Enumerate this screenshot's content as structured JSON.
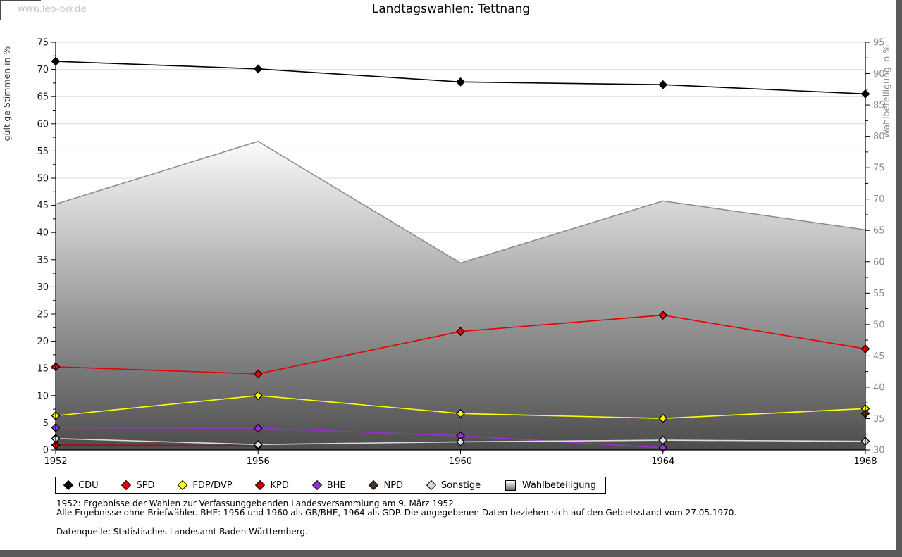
{
  "page": {
    "watermark": "www.leo-bw.de",
    "title": "Landtagswahlen: Tettnang"
  },
  "chart_data": {
    "type": "line",
    "title": "Landtagswahlen: Tettnang",
    "x": [
      1952,
      1956,
      1960,
      1964,
      1968
    ],
    "left_axis": {
      "label": "gültige Stimmen in %",
      "min": 0,
      "max": 75,
      "tick_step": 5,
      "minor_step": 2.5
    },
    "right_axis": {
      "label": "Wahlbeteiligung in %",
      "min": 30,
      "max": 95,
      "tick_step": 5,
      "minor_step": 2.5
    },
    "grid": true,
    "legend_position": "bottom",
    "series": [
      {
        "name": "CDU",
        "axis": "left",
        "color": "#000000",
        "values": [
          71.5,
          70.1,
          67.7,
          67.2,
          65.5
        ]
      },
      {
        "name": "SPD",
        "axis": "left",
        "color": "#e60000",
        "values": [
          15.3,
          14.0,
          21.8,
          24.8,
          18.6
        ]
      },
      {
        "name": "FDP/DVP",
        "axis": "left",
        "color": "#ffff00",
        "values": [
          6.3,
          10.0,
          6.7,
          5.8,
          7.6
        ]
      },
      {
        "name": "KPD",
        "axis": "left",
        "color": "#bf0000",
        "values": [
          0.9,
          0.8,
          null,
          null,
          null
        ]
      },
      {
        "name": "BHE",
        "axis": "left",
        "color": "#9a30cf",
        "values": [
          4.1,
          4.0,
          2.6,
          0.4,
          null
        ]
      },
      {
        "name": "NPD",
        "axis": "left",
        "color": "#4d3222",
        "values": [
          null,
          null,
          null,
          null,
          6.7
        ]
      },
      {
        "name": "Sonstige",
        "axis": "left",
        "color": "#dcdcdc",
        "values": [
          2.1,
          1.0,
          1.5,
          1.8,
          1.6
        ]
      },
      {
        "name": "Wahlbeteiligung",
        "axis": "right",
        "type": "area",
        "color": "#8a8a8a",
        "fill_gradient": [
          "#ffffff",
          "#4a4a4a"
        ],
        "values": [
          69.2,
          79.2,
          59.8,
          69.7,
          65.1
        ]
      }
    ],
    "colors": {
      "gridline": "#dcdcdc",
      "axis_line": "#000000",
      "left_tick_label": "#1a1a1a",
      "right_tick_label": "#8c8c8c",
      "left_axis_title": "#3a3a3a",
      "right_axis_title": "#8c8c8c"
    }
  },
  "footnotes": [
    "1952: Ergebnisse der Wahlen zur Verfassunggebenden Landesversammlung am 9. März 1952.",
    "Alle Ergebnisse ohne Briefwähler. BHE: 1956 und 1960 als GB/BHE, 1964 als GDP. Die angegebenen Daten beziehen sich auf den Gebietsstand vom 27.05.1970.",
    "Datenquelle: Statistisches Landesamt Baden-Württemberg."
  ]
}
